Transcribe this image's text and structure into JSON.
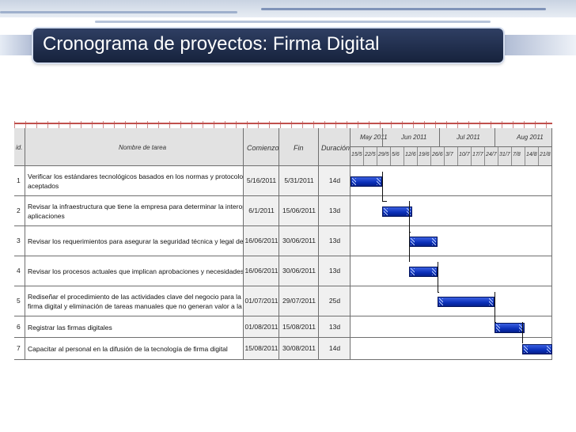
{
  "slide": {
    "title": "Cronograma de proyectos: Firma Digital",
    "accent_color": "#1f2d4e"
  },
  "gantt": {
    "headers": {
      "id": "id.",
      "task_name": "Nombre de tarea",
      "start": "Comienzo",
      "end": "Fin",
      "duration": "Duración"
    },
    "months": [
      "May 2011",
      "Jun 2011",
      "Jul 2011",
      "Aug 2011"
    ],
    "weeks": [
      "15/5",
      "22/5",
      "29/5",
      "5/6",
      "12/6",
      "19/6",
      "26/6",
      "3/7",
      "10/7",
      "17/7",
      "24/7",
      "31/7",
      "7/8",
      "14/8",
      "21/8"
    ],
    "tasks": [
      {
        "id": "1",
        "name_lines": [
          "Verificar los estándares tecnológicos basados en los normas y protocolos  internacionalmente",
          "aceptados"
        ],
        "start": "5/16/2011",
        "end": "5/31/2011",
        "duration": "14d"
      },
      {
        "id": "2",
        "name_lines": [
          "Revisar la infraestructura que tiene la empresa para determinar la interoperabilidad de las",
          "aplicaciones"
        ],
        "start": "6/1/2011",
        "end": "15/06/2011",
        "duration": "13d"
      },
      {
        "id": "3",
        "name_lines": [
          "Revisar los requerimientos para asegurar la seguridad técnica y legal de las transacciones."
        ],
        "start": "16/06/2011",
        "end": "30/06/2011",
        "duration": "13d"
      },
      {
        "id": "4",
        "name_lines": [
          "Revisar los procesos actuales que implican aprobaciones y necesidades de firma digital"
        ],
        "start": "16/06/2011",
        "end": "30/06/2011",
        "duration": "13d"
      },
      {
        "id": "5",
        "name_lines": [
          "Rediseñar el procedimiento de las actividades clave del negocio para la implementación de la",
          "firma digital y eliminación de tareas manuales que no generan valor a la estrategia"
        ],
        "start": "01/07/2011",
        "end": "29/07/2011",
        "duration": "25d"
      },
      {
        "id": "6",
        "name_lines": [
          "Registrar las firmas digitales"
        ],
        "start": "01/08/2011",
        "end": "15/08/2011",
        "duration": "13d"
      },
      {
        "id": "7",
        "name_lines": [
          "Capacitar al personal en la difusión de la tecnología de firma digital"
        ],
        "start": "15/08/2011",
        "end": "30/08/2011",
        "duration": "14d"
      }
    ],
    "bar_color": "#0a2fb8"
  }
}
